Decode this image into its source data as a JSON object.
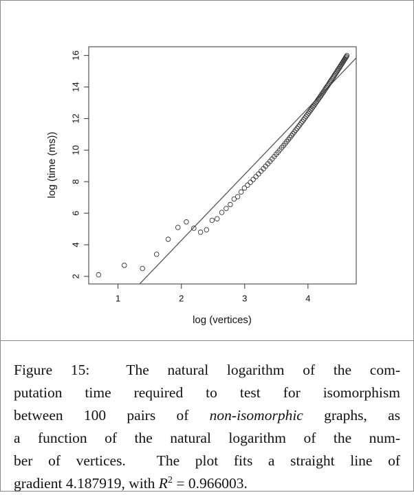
{
  "chart_data": {
    "type": "scatter",
    "xlabel": "log (vertices)",
    "ylabel": "log (time (ms))",
    "x": [
      0.693,
      1.099,
      1.386,
      1.609,
      1.792,
      1.946,
      2.079,
      2.197,
      2.303,
      2.398,
      2.485,
      2.565,
      2.639,
      2.708,
      2.773,
      2.833,
      2.89,
      2.944,
      2.996,
      3.045,
      3.091,
      3.135,
      3.178,
      3.219,
      3.258,
      3.296,
      3.332,
      3.367,
      3.401,
      3.434,
      3.466,
      3.497,
      3.526,
      3.555,
      3.584,
      3.611,
      3.638,
      3.664,
      3.689,
      3.714,
      3.738,
      3.761,
      3.784,
      3.807,
      3.829,
      3.85,
      3.871,
      3.892,
      3.912,
      3.932,
      3.951,
      3.97,
      3.989,
      4.007,
      4.025,
      4.043,
      4.06,
      4.078,
      4.094,
      4.111,
      4.127,
      4.143,
      4.159,
      4.174,
      4.19,
      4.205,
      4.22,
      4.234,
      4.248,
      4.263,
      4.277,
      4.29,
      4.304,
      4.317,
      4.331,
      4.344,
      4.357,
      4.369,
      4.382,
      4.394,
      4.407,
      4.419,
      4.431,
      4.443,
      4.454,
      4.466,
      4.477,
      4.489,
      4.5,
      4.511,
      4.522,
      4.533,
      4.543,
      4.554,
      4.564,
      4.575,
      4.585,
      4.595,
      4.605,
      4.615
    ],
    "values": [
      2.1,
      2.7,
      2.5,
      3.4,
      4.35,
      5.1,
      5.45,
      5.05,
      4.8,
      4.95,
      5.55,
      5.65,
      6.05,
      6.3,
      6.55,
      6.9,
      7.05,
      7.35,
      7.6,
      7.78,
      7.96,
      8.14,
      8.32,
      8.49,
      8.66,
      8.82,
      8.98,
      9.14,
      9.29,
      9.44,
      9.59,
      9.74,
      9.87,
      10.01,
      10.15,
      10.28,
      10.41,
      10.54,
      10.67,
      10.79,
      10.91,
      11.03,
      11.15,
      11.27,
      11.38,
      11.49,
      11.6,
      11.72,
      11.82,
      11.93,
      12.03,
      12.14,
      12.24,
      12.34,
      12.44,
      12.54,
      12.63,
      12.73,
      12.82,
      12.92,
      13.01,
      13.1,
      13.2,
      13.28,
      13.37,
      13.46,
      13.55,
      13.63,
      13.71,
      13.8,
      13.89,
      13.96,
      14.05,
      14.12,
      14.21,
      14.29,
      14.37,
      14.44,
      14.52,
      14.59,
      14.67,
      14.75,
      14.82,
      14.89,
      14.96,
      15.04,
      15.11,
      15.18,
      15.25,
      15.32,
      15.39,
      15.46,
      15.52,
      15.59,
      15.66,
      15.73,
      15.79,
      15.86,
      15.92,
      15.99
    ],
    "color": "#333333",
    "fit": {
      "slope": 4.187919,
      "intercept": -4.1,
      "color": "#555555"
    },
    "xlim": [
      0.537,
      4.762
    ],
    "xticks": [
      1,
      2,
      3,
      4
    ],
    "ylim": [
      1.52,
      16.55
    ],
    "yticks": [
      2,
      4,
      6,
      8,
      10,
      12,
      14,
      16
    ],
    "grid": false
  },
  "caption": {
    "lines": [
      [
        {
          "text": "Figure 15:  The natural logarithm of the com-"
        }
      ],
      [
        {
          "text": "putation time required to test for isomorphism"
        }
      ],
      [
        {
          "text": "between 100 pairs of "
        },
        {
          "text": "non-isomorphic",
          "italic": true
        },
        {
          "text": " graphs, as"
        }
      ],
      [
        {
          "text": "a function of the natural logarithm of the num-"
        }
      ],
      [
        {
          "text": "ber of vertices.  The plot fits a straight line of"
        }
      ],
      [
        {
          "text": "gradient 4.187919, with "
        },
        {
          "text": "R",
          "italic": true
        },
        {
          "text": "2",
          "sup": true
        },
        {
          "text": " = 0.966003."
        }
      ]
    ]
  }
}
